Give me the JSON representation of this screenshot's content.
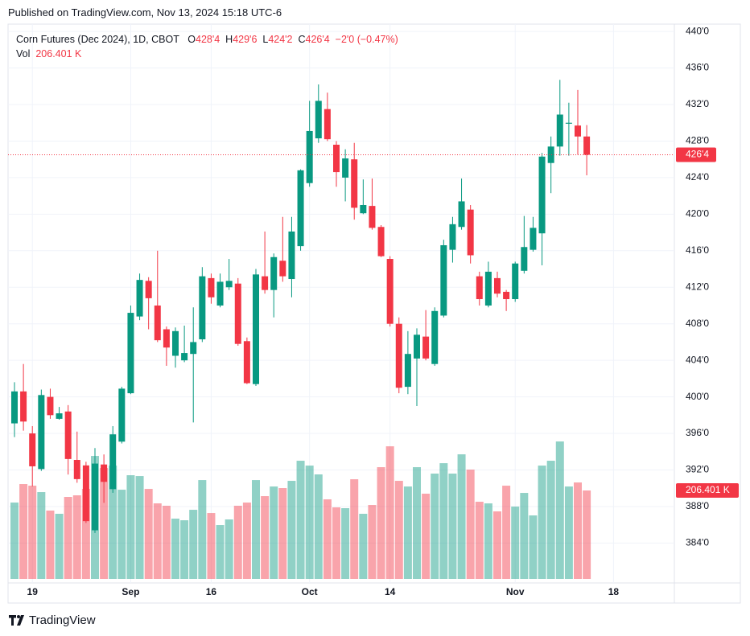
{
  "header": {
    "published": "Published on TradingView.com, Nov 13, 2024 15:18 UTC-6"
  },
  "footer": {
    "brand": "TradingView"
  },
  "chart_data": {
    "type": "candlestick",
    "title": "Corn Futures (Dec 2024), 1D, CBOT",
    "legend": {
      "o_key": "O",
      "o": "428'4",
      "h_key": "H",
      "h": "429'6",
      "l_key": "L",
      "l": "424'2",
      "c_key": "C",
      "c": "426'4",
      "change": "−2'0 (−0.47%)"
    },
    "volume_name": "Vol",
    "volume_value_label": "206.401 K",
    "last_close_label": "426'4",
    "up_color": "#089981",
    "down_color": "#f23645",
    "grid": true,
    "open": [
      397.1,
      400.6,
      396,
      392.1,
      400,
      397.6,
      398.4,
      393.1,
      392.5,
      385.4,
      392.6,
      389.9,
      395.1,
      400.4,
      408.8,
      412.7,
      410,
      407.4,
      404.5,
      404,
      404.7,
      406.3,
      413,
      410,
      412,
      412.4,
      406.1,
      401.4,
      413.2,
      411.7,
      414.9,
      412.9,
      416.5,
      423.4,
      428.3,
      431.5,
      427.6,
      424,
      426,
      420.1,
      420.9,
      418.6,
      415.1,
      408,
      401.1,
      404.2,
      406.6,
      403.6,
      408.9,
      416.1,
      418.6,
      420.5,
      413.2,
      410,
      413,
      411.5,
      410.7,
      413.8,
      416.1,
      417.9,
      425.6,
      427.4,
      429.9,
      429.7,
      428.5
    ],
    "high": [
      401.6,
      403.6,
      396.8,
      400.8,
      400.9,
      398.9,
      399.1,
      396.2,
      392.9,
      394.4,
      393.7,
      396.8,
      401.1,
      410,
      413.5,
      413.1,
      416,
      407.7,
      407.6,
      407.8,
      409.8,
      414.2,
      413.5,
      413.5,
      415.1,
      413,
      406.5,
      414,
      418.1,
      415.7,
      419.7,
      419.7,
      424.9,
      432.4,
      434.2,
      433.3,
      428,
      427.1,
      427.8,
      423.8,
      423.9,
      418.8,
      415.4,
      408.7,
      407.2,
      407.5,
      409.5,
      409.8,
      417.2,
      419.7,
      423.9,
      421,
      413.7,
      414.8,
      413.7,
      411.7,
      414.8,
      419.8,
      419.7,
      426.7,
      428.5,
      434.7,
      432.2,
      433.6,
      429.75
    ],
    "low": [
      395.6,
      396.3,
      390.2,
      391.9,
      397.6,
      397.5,
      391.5,
      390.6,
      386.2,
      385.1,
      388.4,
      389.5,
      394.9,
      400.3,
      408.4,
      407.4,
      406,
      403.4,
      403.2,
      403.8,
      397.2,
      406,
      410.2,
      409.8,
      411.7,
      405.6,
      401.4,
      401.2,
      411.3,
      408.7,
      412.6,
      410.9,
      416,
      423,
      427.8,
      428,
      423,
      421.4,
      419.4,
      420,
      418.3,
      415.3,
      407.7,
      400.4,
      400.3,
      399,
      404,
      403.4,
      408.7,
      414.7,
      418.3,
      414.6,
      410,
      409.8,
      410.9,
      409.4,
      410.4,
      413.5,
      415.9,
      414.4,
      422.3,
      426.4,
      426.4,
      426.5,
      424.25
    ],
    "close": [
      400.6,
      397.3,
      392.4,
      400.2,
      398,
      398.2,
      393.2,
      391,
      386.4,
      392.7,
      390.7,
      395.9,
      400.9,
      409.2,
      412.8,
      410.8,
      406.2,
      405.4,
      407.2,
      404.8,
      406,
      413.2,
      410.9,
      412.6,
      412.7,
      405.8,
      401.5,
      413.4,
      411.7,
      415.3,
      413.2,
      418.1,
      424.8,
      429.1,
      432.4,
      428.2,
      424.6,
      426.1,
      420.7,
      421,
      418.5,
      415.4,
      408,
      401,
      404.7,
      406.8,
      404.2,
      409.4,
      416.6,
      418.9,
      421.4,
      415.5,
      410.7,
      413.7,
      411.3,
      410.7,
      414.6,
      416.4,
      418.5,
      426.3,
      427.4,
      430.9,
      430,
      428.5,
      426.5
    ],
    "volume": [
      178.2,
      221.4,
      217.6,
      202.6,
      159.5,
      152,
      191.4,
      195.1,
      210.1,
      287,
      258.9,
      264.5,
      208.2,
      242,
      240.1,
      210.1,
      176.3,
      170.7,
      140.7,
      136.9,
      161.3,
      230.7,
      153.8,
      125.7,
      138.8,
      170.7,
      178.2,
      230.7,
      193.2,
      215.7,
      212,
      228.9,
      275.8,
      264.5,
      243.9,
      185.7,
      167,
      165.1,
      232.6,
      152,
      172.6,
      260.8,
      309.5,
      228.9,
      215.7,
      260.8,
      198.9,
      245.8,
      270.1,
      245.8,
      290.8,
      255.1,
      180.1,
      176.3,
      157.6,
      217.6,
      168.8,
      200.7,
      148.2,
      264.5,
      275.8,
      320.8,
      215.7,
      225.1,
      206.401
    ],
    "vlim": [
      0,
      380
    ],
    "xlim": [
      -0.72,
      73.8
    ],
    "xticks": [
      {
        "value": 2,
        "label": "19"
      },
      {
        "value": 13,
        "label": "Sep"
      },
      {
        "value": 22,
        "label": "16"
      },
      {
        "value": 33,
        "label": "Oct"
      },
      {
        "value": 42,
        "label": "14"
      },
      {
        "value": 56,
        "label": "Nov"
      },
      {
        "value": 67,
        "label": "18"
      }
    ],
    "ylim": [
      379.9,
      440.8
    ],
    "yticks": [
      {
        "value": 440,
        "label": "440'0"
      },
      {
        "value": 436,
        "label": "436'0"
      },
      {
        "value": 432,
        "label": "432'0"
      },
      {
        "value": 428,
        "label": "428'0"
      },
      {
        "value": 424,
        "label": "424'0"
      },
      {
        "value": 420,
        "label": "420'0"
      },
      {
        "value": 416,
        "label": "416'0"
      },
      {
        "value": 412,
        "label": "412'0"
      },
      {
        "value": 408,
        "label": "408'0"
      },
      {
        "value": 404,
        "label": "404'0"
      },
      {
        "value": 400,
        "label": "400'0"
      },
      {
        "value": 396,
        "label": "396'0"
      },
      {
        "value": 392,
        "label": "392'0"
      },
      {
        "value": 388,
        "label": "388'0"
      },
      {
        "value": 384,
        "label": "384'0"
      }
    ]
  }
}
